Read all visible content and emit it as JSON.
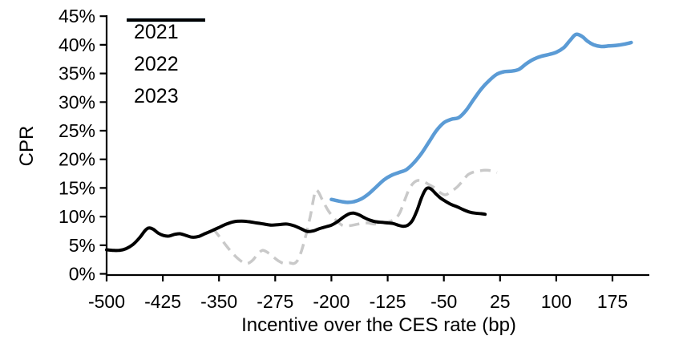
{
  "figure": {
    "y_axis_title": "CPR",
    "x_axis_title": "Incentive over the CES rate (bp)"
  },
  "chart_data": {
    "type": "line",
    "title": "",
    "xlabel": "Incentive over the CES rate (bp)",
    "ylabel": "CPR",
    "xlim": [
      -500,
      225
    ],
    "ylim": [
      0,
      45
    ],
    "x_ticks": [
      -500,
      -425,
      -350,
      -275,
      -200,
      -125,
      -50,
      25,
      100,
      175
    ],
    "y_ticks": [
      0,
      5,
      10,
      15,
      20,
      25,
      30,
      35,
      40,
      45
    ],
    "y_tick_suffix": "%",
    "grid": false,
    "legend_position": "top-left",
    "axis_color": "#000000",
    "series": [
      {
        "name": "2021",
        "color": "#5B9BD5",
        "style": "solid",
        "width": 4.5,
        "points": [
          [
            -200,
            13.0
          ],
          [
            -190,
            12.7
          ],
          [
            -180,
            12.5
          ],
          [
            -170,
            12.6
          ],
          [
            -160,
            13.1
          ],
          [
            -150,
            14.0
          ],
          [
            -140,
            15.2
          ],
          [
            -130,
            16.4
          ],
          [
            -120,
            17.2
          ],
          [
            -110,
            17.7
          ],
          [
            -100,
            18.2
          ],
          [
            -90,
            19.4
          ],
          [
            -80,
            21.0
          ],
          [
            -70,
            23.0
          ],
          [
            -60,
            25.0
          ],
          [
            -50,
            26.4
          ],
          [
            -40,
            27.0
          ],
          [
            -30,
            27.3
          ],
          [
            -20,
            28.6
          ],
          [
            -10,
            30.5
          ],
          [
            0,
            32.3
          ],
          [
            10,
            33.7
          ],
          [
            20,
            34.8
          ],
          [
            30,
            35.3
          ],
          [
            40,
            35.4
          ],
          [
            50,
            35.7
          ],
          [
            60,
            36.7
          ],
          [
            70,
            37.5
          ],
          [
            80,
            38.0
          ],
          [
            90,
            38.3
          ],
          [
            100,
            38.7
          ],
          [
            110,
            39.5
          ],
          [
            118,
            40.7
          ],
          [
            126,
            41.8
          ],
          [
            134,
            41.5
          ],
          [
            142,
            40.6
          ],
          [
            150,
            40.0
          ],
          [
            160,
            39.7
          ],
          [
            170,
            39.8
          ],
          [
            180,
            39.9
          ],
          [
            190,
            40.1
          ],
          [
            200,
            40.4
          ]
        ]
      },
      {
        "name": "2022",
        "color": "#C9C9C9",
        "style": "dashed",
        "width": 3.5,
        "points": [
          [
            -358,
            7.9
          ],
          [
            -350,
            6.6
          ],
          [
            -342,
            5.2
          ],
          [
            -334,
            3.9
          ],
          [
            -326,
            2.8
          ],
          [
            -318,
            2.0
          ],
          [
            -312,
            1.8
          ],
          [
            -305,
            2.4
          ],
          [
            -298,
            3.5
          ],
          [
            -292,
            4.1
          ],
          [
            -286,
            3.8
          ],
          [
            -278,
            3.0
          ],
          [
            -270,
            2.2
          ],
          [
            -263,
            1.8
          ],
          [
            -256,
            1.9
          ],
          [
            -250,
            1.8
          ],
          [
            -245,
            2.4
          ],
          [
            -240,
            4.0
          ],
          [
            -234,
            6.8
          ],
          [
            -228,
            10.2
          ],
          [
            -224,
            13.0
          ],
          [
            -221,
            14.6
          ],
          [
            -217,
            14.2
          ],
          [
            -211,
            12.6
          ],
          [
            -204,
            11.0
          ],
          [
            -197,
            9.8
          ],
          [
            -190,
            8.9
          ],
          [
            -184,
            8.4
          ],
          [
            -176,
            8.4
          ],
          [
            -168,
            8.6
          ],
          [
            -160,
            8.8
          ],
          [
            -152,
            8.9
          ],
          [
            -144,
            8.7
          ],
          [
            -136,
            8.8
          ],
          [
            -128,
            9.0
          ],
          [
            -121,
            9.2
          ],
          [
            -115,
            9.6
          ],
          [
            -109,
            10.6
          ],
          [
            -103,
            12.6
          ],
          [
            -97,
            14.6
          ],
          [
            -91,
            15.8
          ],
          [
            -85,
            16.3
          ],
          [
            -78,
            16.2
          ],
          [
            -70,
            15.6
          ],
          [
            -62,
            15.0
          ],
          [
            -55,
            14.2
          ],
          [
            -48,
            13.8
          ],
          [
            -40,
            14.4
          ],
          [
            -32,
            15.2
          ],
          [
            -25,
            16.2
          ],
          [
            -18,
            17.3
          ],
          [
            -10,
            17.8
          ],
          [
            -2,
            18.0
          ],
          [
            6,
            18.1
          ],
          [
            14,
            18.0
          ],
          [
            21,
            17.7
          ]
        ]
      },
      {
        "name": "2023",
        "color": "#000000",
        "style": "solid",
        "width": 4,
        "points": [
          [
            -500,
            4.2
          ],
          [
            -492,
            4.1
          ],
          [
            -483,
            4.1
          ],
          [
            -474,
            4.4
          ],
          [
            -465,
            5.1
          ],
          [
            -456,
            6.3
          ],
          [
            -449,
            7.5
          ],
          [
            -444,
            8.0
          ],
          [
            -438,
            7.8
          ],
          [
            -431,
            7.1
          ],
          [
            -424,
            6.7
          ],
          [
            -417,
            6.6
          ],
          [
            -409,
            6.9
          ],
          [
            -402,
            7.0
          ],
          [
            -394,
            6.7
          ],
          [
            -386,
            6.4
          ],
          [
            -378,
            6.5
          ],
          [
            -369,
            7.0
          ],
          [
            -360,
            7.5
          ],
          [
            -350,
            8.1
          ],
          [
            -340,
            8.7
          ],
          [
            -330,
            9.1
          ],
          [
            -320,
            9.2
          ],
          [
            -310,
            9.1
          ],
          [
            -300,
            8.9
          ],
          [
            -290,
            8.7
          ],
          [
            -280,
            8.5
          ],
          [
            -270,
            8.6
          ],
          [
            -260,
            8.7
          ],
          [
            -250,
            8.4
          ],
          [
            -241,
            7.9
          ],
          [
            -232,
            7.4
          ],
          [
            -224,
            7.5
          ],
          [
            -216,
            7.9
          ],
          [
            -208,
            8.2
          ],
          [
            -200,
            8.5
          ],
          [
            -192,
            9.1
          ],
          [
            -184,
            9.9
          ],
          [
            -176,
            10.5
          ],
          [
            -170,
            10.6
          ],
          [
            -163,
            10.3
          ],
          [
            -156,
            9.8
          ],
          [
            -149,
            9.4
          ],
          [
            -141,
            9.1
          ],
          [
            -133,
            9.0
          ],
          [
            -125,
            8.9
          ],
          [
            -118,
            8.8
          ],
          [
            -111,
            8.5
          ],
          [
            -104,
            8.3
          ],
          [
            -98,
            8.5
          ],
          [
            -92,
            9.3
          ],
          [
            -86,
            11.0
          ],
          [
            -80,
            13.2
          ],
          [
            -75,
            14.6
          ],
          [
            -71,
            15.0
          ],
          [
            -66,
            14.7
          ],
          [
            -60,
            13.9
          ],
          [
            -54,
            13.2
          ],
          [
            -47,
            12.6
          ],
          [
            -40,
            12.1
          ],
          [
            -32,
            11.7
          ],
          [
            -24,
            11.2
          ],
          [
            -16,
            10.8
          ],
          [
            -8,
            10.6
          ],
          [
            0,
            10.5
          ],
          [
            5,
            10.4
          ]
        ]
      }
    ]
  }
}
